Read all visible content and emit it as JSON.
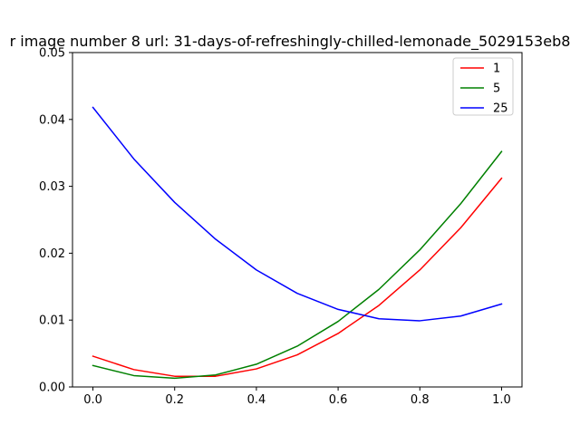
{
  "chart_data": {
    "type": "line",
    "title": "r image number 8 url: 31-days-of-refreshingly-chilled-lemonade_5029153eb8",
    "xlabel": "",
    "ylabel": "",
    "xlim": [
      -0.05,
      1.05
    ],
    "ylim": [
      0,
      0.05
    ],
    "x_ticks": [
      "0.0",
      "0.2",
      "0.4",
      "0.6",
      "0.8",
      "1.0"
    ],
    "y_ticks": [
      "0.00",
      "0.01",
      "0.02",
      "0.03",
      "0.04",
      "0.05"
    ],
    "x": [
      0.0,
      0.1,
      0.2,
      0.3,
      0.4,
      0.5,
      0.6,
      0.7,
      0.8,
      0.9,
      1.0
    ],
    "legend_position": "top-right",
    "series": [
      {
        "name": "1",
        "color": "#ff0000",
        "values": [
          0.0046,
          0.0026,
          0.0016,
          0.0016,
          0.0027,
          0.0048,
          0.008,
          0.0122,
          0.0175,
          0.0238,
          0.0312
        ]
      },
      {
        "name": "5",
        "color": "#008000",
        "values": [
          0.0032,
          0.0017,
          0.0013,
          0.0018,
          0.0034,
          0.0061,
          0.0098,
          0.0146,
          0.0205,
          0.0274,
          0.0352
        ]
      },
      {
        "name": "25",
        "color": "#0000ff",
        "values": [
          0.0418,
          0.0341,
          0.0276,
          0.0221,
          0.0175,
          0.014,
          0.0116,
          0.0102,
          0.0099,
          0.0106,
          0.0124
        ]
      }
    ]
  }
}
